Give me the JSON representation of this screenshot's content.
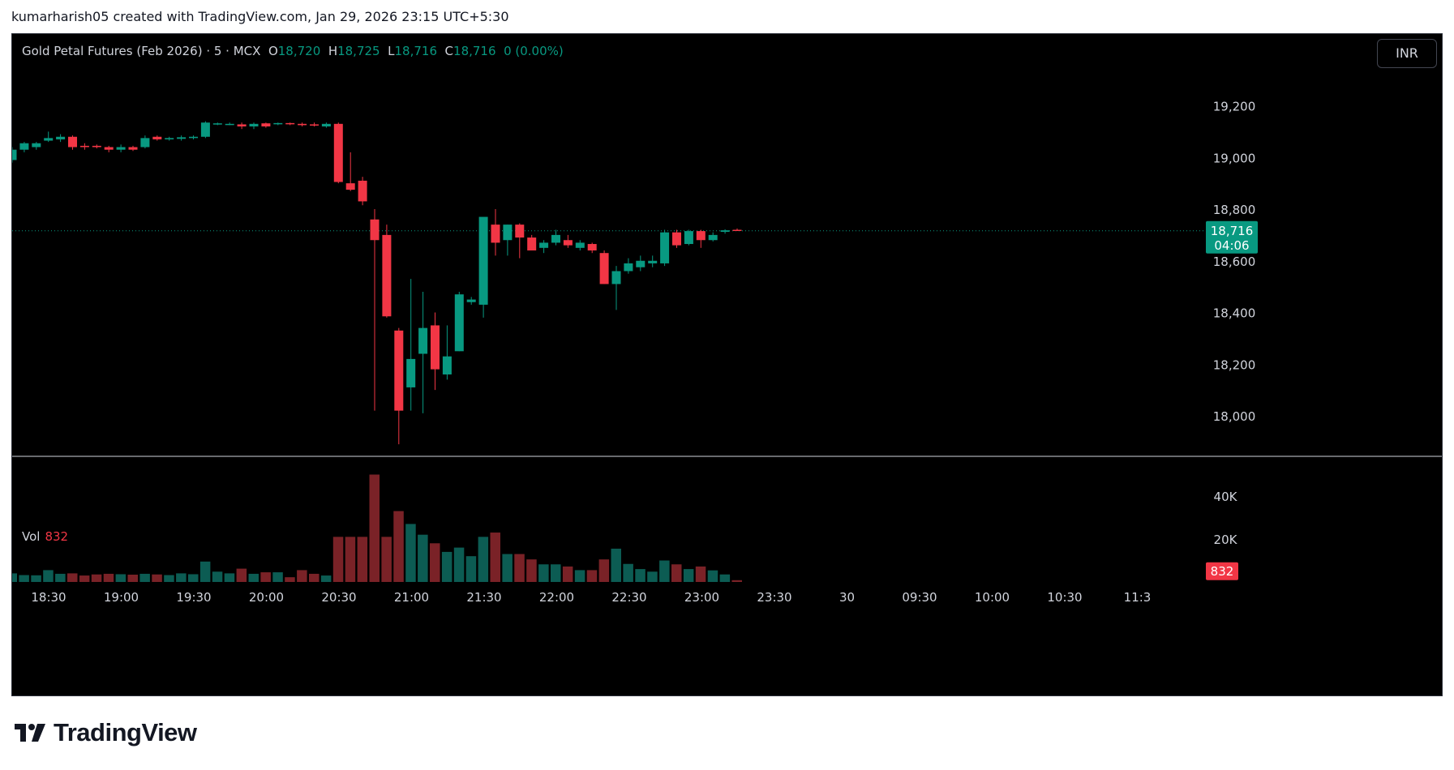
{
  "header": {
    "caption": "kumarharish05 created with TradingView.com, Jan 29, 2026 23:15 UTC+5:30"
  },
  "legend": {
    "symbol": "Gold Petal Futures (Feb 2026) · 5 · MCX",
    "o_label": "O",
    "o_value": "18,720",
    "h_label": "H",
    "h_value": "18,725",
    "l_label": "L",
    "l_value": "18,716",
    "c_label": "C",
    "c_value": "18,716",
    "change": "0 (0.00%)"
  },
  "currency_button": "INR",
  "last_price_label": "18,716",
  "countdown_label": "04:06",
  "volume": {
    "label": "Vol",
    "value": "832",
    "last_label": "832"
  },
  "brand": {
    "name": "TradingView"
  },
  "colors": {
    "up": "#089981",
    "down": "#f23645",
    "vol_up": "#0c5c53",
    "vol_down": "#7a2227",
    "background": "#000000"
  },
  "chart_data": {
    "type": "candlestick",
    "price_axis": {
      "ticks": [
        19200,
        19000,
        18800,
        18600,
        18400,
        18200,
        18000
      ],
      "tick_labels": [
        "19,200",
        "19,000",
        "18,800",
        "18,600",
        "18,400",
        "18,200",
        "18,000"
      ]
    },
    "volume_axis": {
      "ticks": [
        40000,
        20000
      ],
      "tick_labels": [
        "40K",
        "20K"
      ]
    },
    "time_axis": {
      "labels": [
        "18:30",
        "19:00",
        "19:30",
        "20:00",
        "20:30",
        "21:00",
        "21:30",
        "22:00",
        "22:30",
        "23:00",
        "23:30",
        "30",
        "09:30",
        "10:00",
        "10:30",
        "11:3"
      ]
    },
    "last_price": 18716,
    "candles": [
      {
        "t": "18:15",
        "o": 18990,
        "h": 19040,
        "l": 18980,
        "c": 19030,
        "v": 4000
      },
      {
        "t": "18:20",
        "o": 19030,
        "h": 19060,
        "l": 19020,
        "c": 19055,
        "v": 3200
      },
      {
        "t": "18:25",
        "o": 19040,
        "h": 19060,
        "l": 19030,
        "c": 19055,
        "v": 3100
      },
      {
        "t": "18:30",
        "o": 19065,
        "h": 19100,
        "l": 19060,
        "c": 19075,
        "v": 5500
      },
      {
        "t": "18:35",
        "o": 19070,
        "h": 19090,
        "l": 19060,
        "c": 19080,
        "v": 3800
      },
      {
        "t": "18:40",
        "o": 19080,
        "h": 19085,
        "l": 19030,
        "c": 19040,
        "v": 4000
      },
      {
        "t": "18:45",
        "o": 19045,
        "h": 19055,
        "l": 19030,
        "c": 19040,
        "v": 3000
      },
      {
        "t": "18:50",
        "o": 19045,
        "h": 19050,
        "l": 19035,
        "c": 19040,
        "v": 3500
      },
      {
        "t": "18:55",
        "o": 19040,
        "h": 19045,
        "l": 19020,
        "c": 19030,
        "v": 3800
      },
      {
        "t": "19:00",
        "o": 19030,
        "h": 19050,
        "l": 19020,
        "c": 19040,
        "v": 3600
      },
      {
        "t": "19:05",
        "o": 19040,
        "h": 19045,
        "l": 19025,
        "c": 19030,
        "v": 3400
      },
      {
        "t": "19:10",
        "o": 19040,
        "h": 19085,
        "l": 19035,
        "c": 19075,
        "v": 3800
      },
      {
        "t": "19:15",
        "o": 19080,
        "h": 19085,
        "l": 19065,
        "c": 19070,
        "v": 3500
      },
      {
        "t": "19:20",
        "o": 19070,
        "h": 19080,
        "l": 19065,
        "c": 19075,
        "v": 3200
      },
      {
        "t": "19:25",
        "o": 19072,
        "h": 19085,
        "l": 19065,
        "c": 19078,
        "v": 4000
      },
      {
        "t": "19:30",
        "o": 19075,
        "h": 19085,
        "l": 19070,
        "c": 19080,
        "v": 3600
      },
      {
        "t": "19:35",
        "o": 19080,
        "h": 19140,
        "l": 19075,
        "c": 19135,
        "v": 9500
      },
      {
        "t": "19:40",
        "o": 19130,
        "h": 19135,
        "l": 19125,
        "c": 19132,
        "v": 4800
      },
      {
        "t": "19:45",
        "o": 19130,
        "h": 19135,
        "l": 19125,
        "c": 19130,
        "v": 4000
      },
      {
        "t": "19:50",
        "o": 19128,
        "h": 19135,
        "l": 19110,
        "c": 19120,
        "v": 6200
      },
      {
        "t": "19:55",
        "o": 19120,
        "h": 19135,
        "l": 19110,
        "c": 19130,
        "v": 3800
      },
      {
        "t": "20:00",
        "o": 19132,
        "h": 19135,
        "l": 19115,
        "c": 19120,
        "v": 4500
      },
      {
        "t": "20:05",
        "o": 19130,
        "h": 19135,
        "l": 19125,
        "c": 19133,
        "v": 4500
      },
      {
        "t": "20:10",
        "o": 19133,
        "h": 19135,
        "l": 19125,
        "c": 19130,
        "v": 2200
      },
      {
        "t": "20:15",
        "o": 19130,
        "h": 19135,
        "l": 19120,
        "c": 19125,
        "v": 5500
      },
      {
        "t": "20:20",
        "o": 19128,
        "h": 19135,
        "l": 19120,
        "c": 19125,
        "v": 3800
      },
      {
        "t": "20:25",
        "o": 19120,
        "h": 19135,
        "l": 19115,
        "c": 19130,
        "v": 3000
      },
      {
        "t": "20:30",
        "o": 19130,
        "h": 19135,
        "l": 18900,
        "c": 18905,
        "v": 21000
      },
      {
        "t": "20:35",
        "o": 18900,
        "h": 19020,
        "l": 18870,
        "c": 18875,
        "v": 21000
      },
      {
        "t": "20:40",
        "o": 18910,
        "h": 18925,
        "l": 18815,
        "c": 18830,
        "v": 21000
      },
      {
        "t": "20:45",
        "o": 18760,
        "h": 18800,
        "l": 18020,
        "c": 18680,
        "v": 50000
      },
      {
        "t": "20:50",
        "o": 18700,
        "h": 18740,
        "l": 18380,
        "c": 18385,
        "v": 21000
      },
      {
        "t": "20:55",
        "o": 18330,
        "h": 18340,
        "l": 17890,
        "c": 18020,
        "v": 33000
      },
      {
        "t": "21:00",
        "o": 18110,
        "h": 18530,
        "l": 18020,
        "c": 18220,
        "v": 27000
      },
      {
        "t": "21:05",
        "o": 18240,
        "h": 18480,
        "l": 18010,
        "c": 18340,
        "v": 22000
      },
      {
        "t": "21:10",
        "o": 18350,
        "h": 18400,
        "l": 18100,
        "c": 18180,
        "v": 18000
      },
      {
        "t": "21:15",
        "o": 18160,
        "h": 18350,
        "l": 18140,
        "c": 18230,
        "v": 14000
      },
      {
        "t": "21:20",
        "o": 18250,
        "h": 18480,
        "l": 18250,
        "c": 18470,
        "v": 16000
      },
      {
        "t": "21:25",
        "o": 18440,
        "h": 18460,
        "l": 18430,
        "c": 18450,
        "v": 12000
      },
      {
        "t": "21:30",
        "o": 18430,
        "h": 18760,
        "l": 18380,
        "c": 18770,
        "v": 21000
      },
      {
        "t": "21:35",
        "o": 18740,
        "h": 18800,
        "l": 18620,
        "c": 18670,
        "v": 23000
      },
      {
        "t": "21:40",
        "o": 18680,
        "h": 18740,
        "l": 18620,
        "c": 18740,
        "v": 13000
      },
      {
        "t": "21:45",
        "o": 18740,
        "h": 18745,
        "l": 18610,
        "c": 18690,
        "v": 13000
      },
      {
        "t": "21:50",
        "o": 18690,
        "h": 18700,
        "l": 18640,
        "c": 18640,
        "v": 10500
      },
      {
        "t": "21:55",
        "o": 18650,
        "h": 18680,
        "l": 18630,
        "c": 18670,
        "v": 8200
      },
      {
        "t": "22:00",
        "o": 18670,
        "h": 18720,
        "l": 18660,
        "c": 18700,
        "v": 8200
      },
      {
        "t": "22:05",
        "o": 18680,
        "h": 18700,
        "l": 18650,
        "c": 18660,
        "v": 7200
      },
      {
        "t": "22:10",
        "o": 18650,
        "h": 18680,
        "l": 18640,
        "c": 18670,
        "v": 5500
      },
      {
        "t": "22:15",
        "o": 18665,
        "h": 18670,
        "l": 18630,
        "c": 18640,
        "v": 5500
      },
      {
        "t": "22:20",
        "o": 18630,
        "h": 18640,
        "l": 18510,
        "c": 18510,
        "v": 10500
      },
      {
        "t": "22:25",
        "o": 18510,
        "h": 18580,
        "l": 18410,
        "c": 18560,
        "v": 15500
      },
      {
        "t": "22:30",
        "o": 18560,
        "h": 18610,
        "l": 18550,
        "c": 18590,
        "v": 8400
      },
      {
        "t": "22:35",
        "o": 18575,
        "h": 18620,
        "l": 18560,
        "c": 18600,
        "v": 6000
      },
      {
        "t": "22:40",
        "o": 18590,
        "h": 18620,
        "l": 18575,
        "c": 18600,
        "v": 4800
      },
      {
        "t": "22:45",
        "o": 18590,
        "h": 18720,
        "l": 18580,
        "c": 18710,
        "v": 10000
      },
      {
        "t": "22:50",
        "o": 18710,
        "h": 18720,
        "l": 18650,
        "c": 18660,
        "v": 8200
      },
      {
        "t": "22:55",
        "o": 18665,
        "h": 18720,
        "l": 18660,
        "c": 18715,
        "v": 6000
      },
      {
        "t": "23:00",
        "o": 18715,
        "h": 18720,
        "l": 18650,
        "c": 18680,
        "v": 7200
      },
      {
        "t": "23:05",
        "o": 18680,
        "h": 18710,
        "l": 18675,
        "c": 18700,
        "v": 5400
      },
      {
        "t": "23:10",
        "o": 18712,
        "h": 18722,
        "l": 18705,
        "c": 18718,
        "v": 3500
      },
      {
        "t": "23:15",
        "o": 18720,
        "h": 18725,
        "l": 18716,
        "c": 18716,
        "v": 832
      }
    ]
  }
}
